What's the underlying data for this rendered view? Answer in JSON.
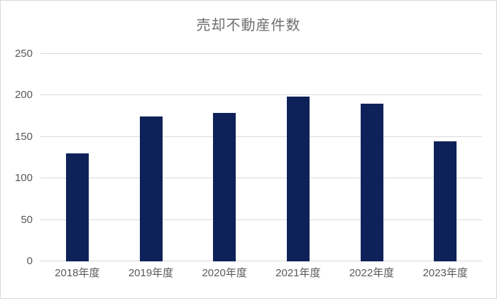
{
  "chart": {
    "title": "売却不動産件数"
  },
  "chart_data": {
    "type": "bar",
    "title": "売却不動産件数",
    "categories": [
      "2018年度",
      "2019年度",
      "2020年度",
      "2021年度",
      "2022年度",
      "2023年度"
    ],
    "values": [
      130,
      175,
      179,
      199,
      190,
      145
    ],
    "xlabel": "",
    "ylabel": "",
    "ylim": [
      0,
      250
    ],
    "yticks": [
      0,
      50,
      100,
      150,
      200,
      250
    ],
    "grid": true,
    "legend": false,
    "colors": {
      "bar": "#0e2259",
      "gridline": "#d9d9d9",
      "axis_labels": "#595959",
      "title": "#6e6e6e",
      "background": "#ffffff",
      "chart_border": "#d9d9d9"
    }
  }
}
